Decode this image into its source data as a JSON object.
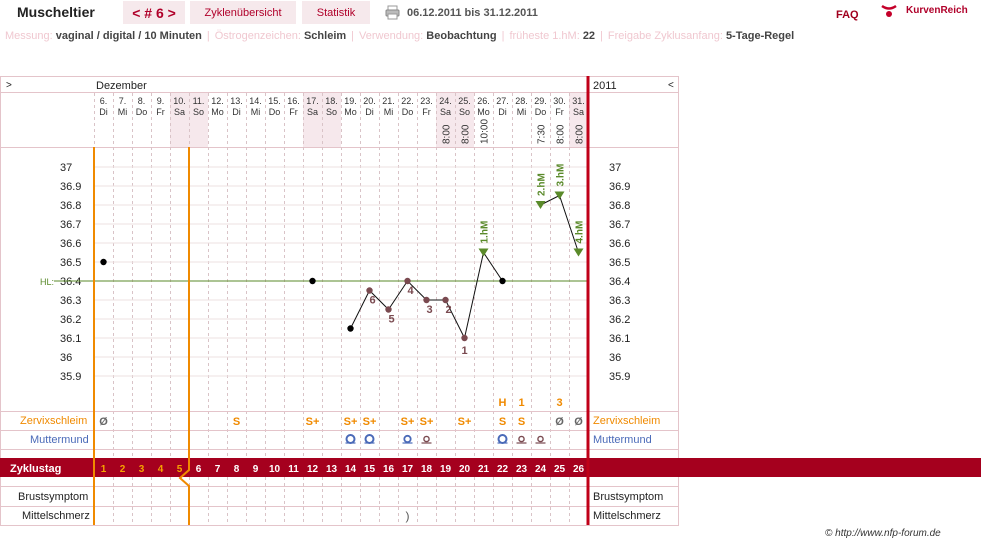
{
  "header": {
    "app_title": "Muscheltier",
    "cycle_tab": "< # 6 >",
    "overview_tab": "Zyklenübersicht",
    "statistics_tab": "Statistik",
    "date_range": "06.12.2011 bis 31.12.2011",
    "faq": "FAQ",
    "logo_text": "KurvenReich"
  },
  "settings": [
    {
      "label": "Messung:",
      "value": "vaginal / digital / 10 Minuten"
    },
    {
      "label": "Östrogenzeichen:",
      "value": "Schleim"
    },
    {
      "label": "Verwendung:",
      "value": "Beobachtung"
    },
    {
      "label": "früheste 1.hM:",
      "value": "22"
    },
    {
      "label": "Freigabe Zyklusanfang:",
      "value": "5-Tage-Regel"
    }
  ],
  "nav": {
    "prev": ">",
    "next": "<",
    "month": "Dezember",
    "year": "2011"
  },
  "days": [
    {
      "d": "6.",
      "w": "Di",
      "t": "",
      "shade": false
    },
    {
      "d": "7.",
      "w": "Mi",
      "t": "",
      "shade": false
    },
    {
      "d": "8.",
      "w": "Do",
      "t": "",
      "shade": false
    },
    {
      "d": "9.",
      "w": "Fr",
      "t": "",
      "shade": false
    },
    {
      "d": "10.",
      "w": "Sa",
      "t": "",
      "shade": true
    },
    {
      "d": "11.",
      "w": "So",
      "t": "",
      "shade": true
    },
    {
      "d": "12.",
      "w": "Mo",
      "t": "",
      "shade": false
    },
    {
      "d": "13.",
      "w": "Di",
      "t": "",
      "shade": false
    },
    {
      "d": "14.",
      "w": "Mi",
      "t": "",
      "shade": false
    },
    {
      "d": "15.",
      "w": "Do",
      "t": "",
      "shade": false
    },
    {
      "d": "16.",
      "w": "Fr",
      "t": "",
      "shade": false
    },
    {
      "d": "17.",
      "w": "Sa",
      "t": "",
      "shade": true
    },
    {
      "d": "18.",
      "w": "So",
      "t": "",
      "shade": true
    },
    {
      "d": "19.",
      "w": "Mo",
      "t": "",
      "shade": false
    },
    {
      "d": "20.",
      "w": "Di",
      "t": "",
      "shade": false
    },
    {
      "d": "21.",
      "w": "Mi",
      "t": "",
      "shade": false
    },
    {
      "d": "22.",
      "w": "Do",
      "t": "",
      "shade": false
    },
    {
      "d": "23.",
      "w": "Fr",
      "t": "",
      "shade": false
    },
    {
      "d": "24.",
      "w": "Sa",
      "t": "8:00",
      "shade": true
    },
    {
      "d": "25.",
      "w": "So",
      "t": "8:00",
      "shade": true
    },
    {
      "d": "26.",
      "w": "Mo",
      "t": "10:00",
      "shade": false
    },
    {
      "d": "27.",
      "w": "Di",
      "t": "",
      "shade": false
    },
    {
      "d": "28.",
      "w": "Mi",
      "t": "",
      "shade": false
    },
    {
      "d": "29.",
      "w": "Do",
      "t": "7:30",
      "shade": false
    },
    {
      "d": "30.",
      "w": "Fr",
      "t": "8:00",
      "shade": false
    },
    {
      "d": "31.",
      "w": "Sa",
      "t": "8:00",
      "shade": true
    }
  ],
  "y_ticks": [
    "37",
    "36.9",
    "36.8",
    "36.7",
    "36.6",
    "36.5",
    "36.4",
    "36.3",
    "36.2",
    "36.1",
    "36",
    "35.9"
  ],
  "coverline": {
    "label": "HL:",
    "value": 36.4
  },
  "temps": [
    36.5,
    null,
    null,
    null,
    null,
    null,
    null,
    null,
    null,
    null,
    null,
    36.4,
    null,
    36.15,
    36.35,
    36.25,
    36.4,
    36.3,
    36.3,
    36.1,
    36.55,
    36.4,
    null,
    36.8,
    36.85,
    36.55
  ],
  "temp_labels": [
    "",
    "",
    "",
    "",
    "",
    "",
    "",
    "",
    "",
    "",
    "",
    "",
    "",
    "",
    "6",
    "5",
    "4",
    "3",
    "2",
    "1",
    "",
    "",
    "",
    "",
    "",
    ""
  ],
  "high_labels": [
    "",
    "",
    "",
    "",
    "",
    "",
    "",
    "",
    "",
    "",
    "",
    "",
    "",
    "",
    "",
    "",
    "",
    "",
    "",
    "",
    "1.hM",
    "",
    "",
    "2.hM",
    "3.hM",
    "4.hM"
  ],
  "rows": {
    "zervix": {
      "label": "Zervixschleim"
    },
    "muttermund": {
      "label": "Muttermund"
    },
    "zyklustag": {
      "label": "Zyklustag"
    },
    "brust": {
      "label": "Brustsymptom"
    },
    "mittel": {
      "label": "Mittelschmerz"
    }
  },
  "zervix_marks": [
    "Ø",
    "",
    "",
    "",
    "",
    "",
    "",
    "S",
    "",
    "",
    "",
    "S+",
    "",
    "S+",
    "S+",
    "",
    "S+",
    "S+",
    "",
    "S+",
    "",
    "S",
    "S",
    "",
    "Ø",
    "Ø"
  ],
  "peak_marks": [
    "",
    "",
    "",
    "",
    "",
    "",
    "",
    "",
    "",
    "",
    "",
    "",
    "",
    "",
    "",
    "",
    "",
    "",
    "",
    "",
    "",
    "H",
    "1",
    "",
    "3",
    ""
  ],
  "muttermund_marks": [
    "",
    "",
    "",
    "",
    "",
    "",
    "",
    "",
    "",
    "",
    "",
    "",
    "",
    "open",
    "open",
    "",
    "semi",
    "closed",
    "",
    "",
    "",
    "open",
    "closed",
    "closed",
    "",
    ""
  ],
  "mittelschmerz_marks": [
    "",
    "",
    "",
    "",
    "",
    "",
    "",
    "",
    "",
    "",
    "",
    "",
    "",
    "",
    "",
    "",
    ")",
    "",
    "",
    "",
    "",
    "",
    "",
    "",
    "",
    ""
  ],
  "cycle_days": [
    1,
    2,
    3,
    4,
    5,
    6,
    7,
    8,
    9,
    10,
    11,
    12,
    13,
    14,
    15,
    16,
    17,
    18,
    19,
    20,
    21,
    22,
    23,
    24,
    25,
    26
  ],
  "copyright": "© http://www.nfp-forum.de",
  "colors": {
    "accent": "#a5001e",
    "orange": "#f08a00",
    "green": "#5a8a2a",
    "blue": "#4a6ab8",
    "marker": "#7a4a50",
    "shade": "#f6e8ec"
  }
}
